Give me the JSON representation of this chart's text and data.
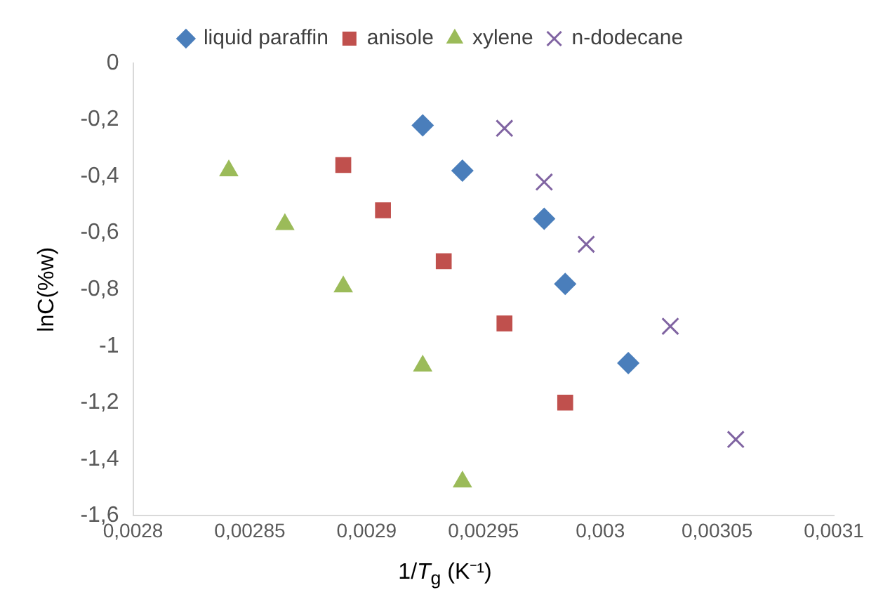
{
  "chart_data": {
    "type": "scatter",
    "xlabel": "1/T$_{g}$ (K⁻¹)",
    "ylabel": "lnC(%w)",
    "xlim": [
      0.0028,
      0.0031
    ],
    "xticks": [
      {
        "value": 0.0028,
        "label": "0,0028"
      },
      {
        "value": 0.00285,
        "label": "0,00285"
      },
      {
        "value": 0.0029,
        "label": "0,0029"
      },
      {
        "value": 0.00295,
        "label": "0,00295"
      },
      {
        "value": 0.003,
        "label": "0,003"
      },
      {
        "value": 0.00305,
        "label": "0,00305"
      },
      {
        "value": 0.0031,
        "label": "0,0031"
      }
    ],
    "ylim": [
      -1.6,
      0
    ],
    "yticks": [
      {
        "value": -1.6,
        "label": "-1,6"
      },
      {
        "value": -1.4,
        "label": "-1,4"
      },
      {
        "value": -1.2,
        "label": "-1,2"
      },
      {
        "value": -1,
        "label": "-1"
      },
      {
        "value": -0.8,
        "label": "-0,8"
      },
      {
        "value": -0.6,
        "label": "-0,6"
      },
      {
        "value": -0.4,
        "label": "-0,4"
      },
      {
        "value": -0.2,
        "label": "-0,2"
      },
      0
    ],
    "grid": false,
    "legend": "top",
    "series": [
      {
        "name": "liquid paraffin",
        "color": "#4a7ebb",
        "marker": "diamond",
        "x": [
          0.002924,
          0.002941,
          0.002976,
          0.002985,
          0.003012
        ],
        "values": [
          -0.22,
          -0.38,
          -0.55,
          -0.78,
          -1.06
        ]
      },
      {
        "name": "anisole",
        "color": "#c0504d",
        "marker": "square",
        "x": [
          0.00289,
          0.002907,
          0.002933,
          0.002959,
          0.002985
        ],
        "values": [
          -0.36,
          -0.52,
          -0.7,
          -0.92,
          -1.2
        ]
      },
      {
        "name": "xylene",
        "color": "#9bbb59",
        "marker": "triangle",
        "x": [
          0.002841,
          0.002865,
          0.00289,
          0.002924,
          0.002941
        ],
        "values": [
          -0.38,
          -0.57,
          -0.79,
          -1.07,
          -1.48
        ]
      },
      {
        "name": "n-dodecane",
        "color": "#8064a2",
        "marker": "cross",
        "x": [
          0.002959,
          0.002976,
          0.002994,
          0.00303,
          0.003058
        ],
        "values": [
          -0.23,
          -0.42,
          -0.64,
          -0.93,
          -1.33
        ]
      }
    ]
  }
}
